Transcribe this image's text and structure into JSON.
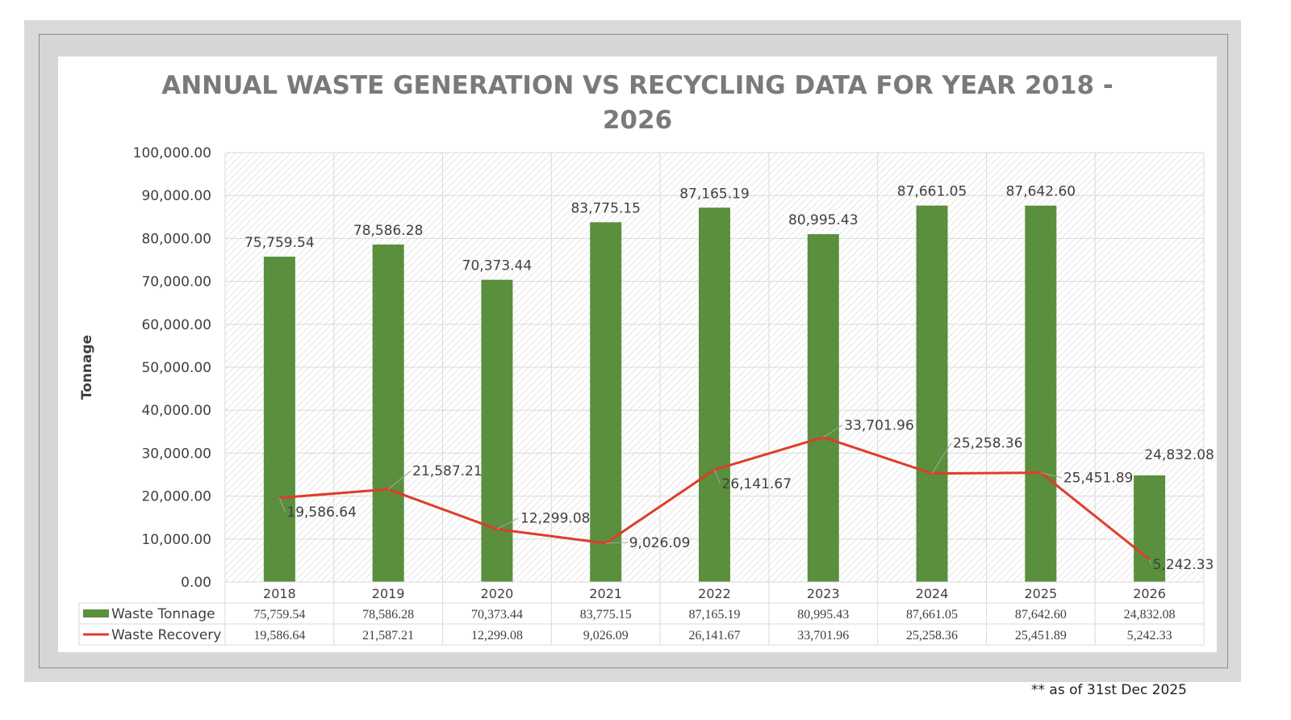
{
  "chart_data": {
    "type": "bar",
    "title_line1": "ANNUAL WASTE GENERATION VS RECYCLING DATA FOR YEAR 2018 -",
    "title_line2": "2026",
    "ylabel": "Tonnage",
    "xlabel": "",
    "ylim": [
      0,
      100000
    ],
    "y_ticks": [
      "0.00",
      "10,000.00",
      "20,000.00",
      "30,000.00",
      "40,000.00",
      "50,000.00",
      "60,000.00",
      "70,000.00",
      "80,000.00",
      "90,000.00",
      "100,000.00"
    ],
    "grid": true,
    "legend_placement": "data-table",
    "categories": [
      "2018",
      "2019",
      "2020",
      "2021",
      "2022",
      "2023",
      "2024",
      "2025",
      "2026"
    ],
    "series": [
      {
        "name": "Waste Tonnage",
        "kind": "bar",
        "color": "#5a8f3d",
        "values": [
          75759.54,
          78586.28,
          70373.44,
          83775.15,
          87165.19,
          80995.43,
          87661.05,
          87642.6,
          24832.08
        ],
        "labels": [
          "75,759.54",
          "78,586.28",
          "70,373.44",
          "83,775.15",
          "87,165.19",
          "80,995.43",
          "87,661.05",
          "87,642.60",
          "24,832.08"
        ]
      },
      {
        "name": "Waste Recovery",
        "kind": "line",
        "color": "#e03c2c",
        "values": [
          19586.64,
          21587.21,
          12299.08,
          9026.09,
          26141.67,
          33701.96,
          25258.36,
          25451.89,
          5242.33
        ],
        "labels": [
          "19,586.64",
          "21,587.21",
          "12,299.08",
          "9,026.09",
          "26,141.67",
          "33,701.96",
          "25,258.36",
          "25,451.89",
          "5,242.33"
        ]
      }
    ]
  },
  "footnote": "** as of 31st  Dec 2025"
}
